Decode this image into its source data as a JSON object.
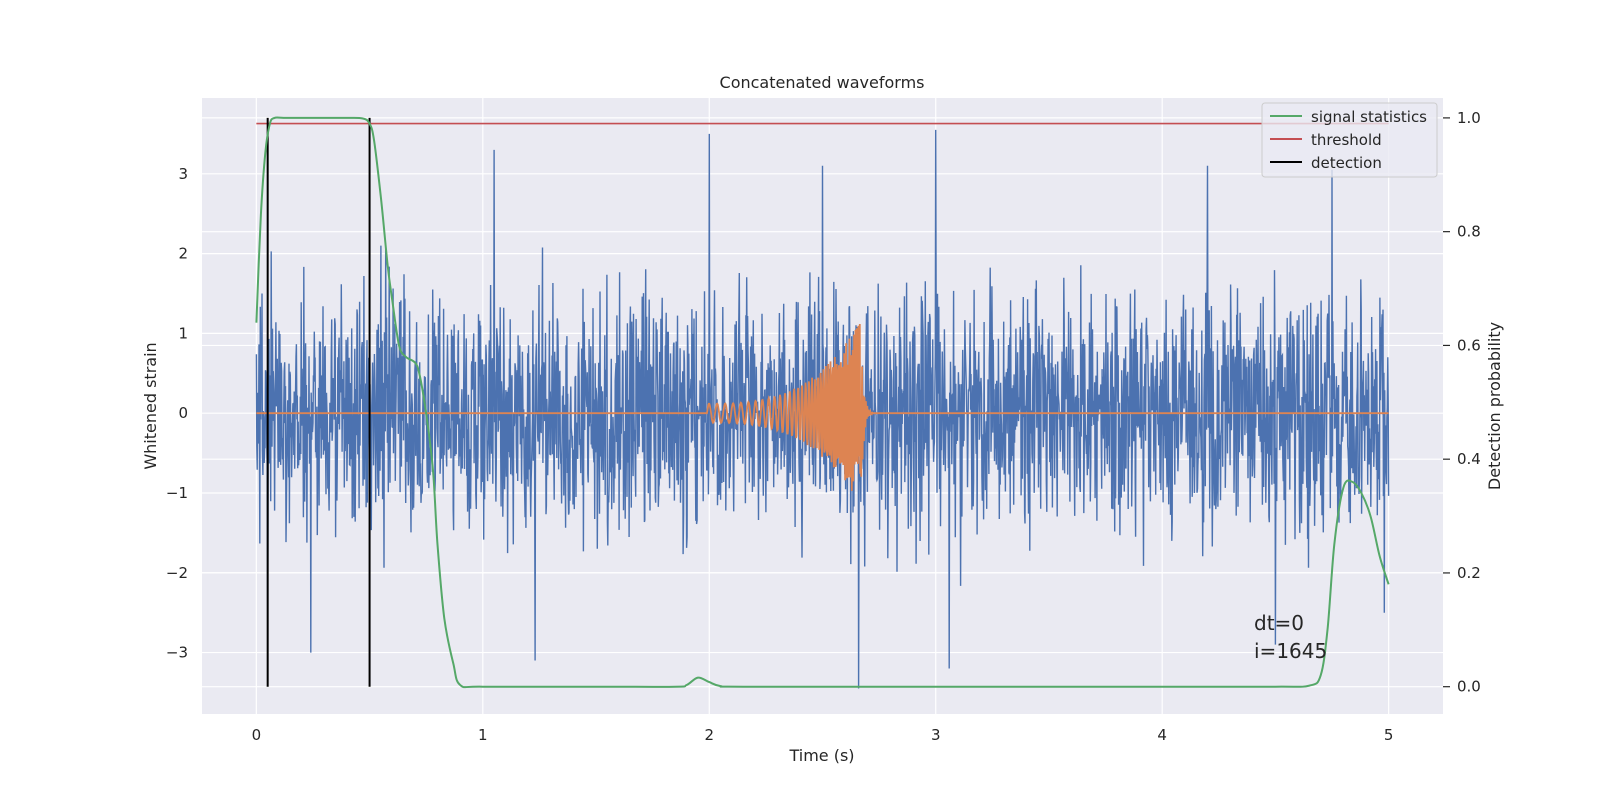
{
  "chart_data": {
    "type": "line",
    "title": "Concatenated waveforms",
    "xlabel": "Time (s)",
    "ylabel": "Whitened strain",
    "ylabel_right": "Detection probability",
    "xlim": [
      -0.24,
      5.24
    ],
    "ylim": [
      -3.77,
      3.95
    ],
    "ylim_right": [
      -0.048,
      1.035
    ],
    "xticks": [
      0,
      1,
      2,
      3,
      4,
      5
    ],
    "yticks": [
      -3,
      -2,
      -1,
      0,
      1,
      2,
      3
    ],
    "yticks_right": [
      0.0,
      0.2,
      0.4,
      0.6,
      0.8,
      1.0
    ],
    "xtick_labels": [
      "0",
      "1",
      "2",
      "3",
      "4",
      "5"
    ],
    "ytick_labels": [
      "−3",
      "−2",
      "−1",
      "0",
      "1",
      "2",
      "3"
    ],
    "ytick_right_labels": [
      "0.0",
      "0.2",
      "0.4",
      "0.6",
      "0.8",
      "1.0"
    ],
    "grid": true,
    "legend_position": "top-right",
    "series": [
      {
        "name": "",
        "axis": "left",
        "color": "#4c72b0",
        "kind": "noise",
        "x_range": [
          0,
          5
        ],
        "typical_envelope": [
          -1.8,
          2.0
        ],
        "peaks": [
          {
            "x": 0.05,
            "y": -2.6
          },
          {
            "x": 0.24,
            "y": -3.0
          },
          {
            "x": 0.55,
            "y": 2.1
          },
          {
            "x": 1.05,
            "y": 3.3
          },
          {
            "x": 1.23,
            "y": -3.1
          },
          {
            "x": 2.0,
            "y": 3.5
          },
          {
            "x": 2.5,
            "y": 3.1
          },
          {
            "x": 2.66,
            "y": -3.45
          },
          {
            "x": 3.0,
            "y": 3.55
          },
          {
            "x": 3.06,
            "y": -3.2
          },
          {
            "x": 4.2,
            "y": 3.1
          },
          {
            "x": 4.75,
            "y": 3.05
          },
          {
            "x": 4.5,
            "y": -2.9
          },
          {
            "x": 4.98,
            "y": -2.5
          }
        ]
      },
      {
        "name": "",
        "axis": "left",
        "color": "#dd8452",
        "kind": "chirp",
        "x_range": [
          0,
          5
        ],
        "chirp_start": 1.99,
        "chirp_end": 2.67,
        "amplitude_start": 0.12,
        "amplitude_peak": 1.15,
        "amplitude_min": -1.1,
        "frequency_start_hz": 28,
        "frequency_end_hz": 170
      },
      {
        "name": "signal statistics",
        "axis": "right",
        "color": "#55a868",
        "x": [
          0.0,
          0.02,
          0.04,
          0.06,
          0.08,
          0.12,
          0.2,
          0.3,
          0.4,
          0.47,
          0.5,
          0.52,
          0.55,
          0.58,
          0.6,
          0.63,
          0.66,
          0.7,
          0.72,
          0.75,
          0.78,
          0.8,
          0.83,
          0.87,
          0.9,
          1.0,
          1.5,
          1.85,
          1.9,
          1.95,
          2.0,
          2.05,
          2.15,
          3.0,
          4.0,
          4.5,
          4.65,
          4.7,
          4.73,
          4.76,
          4.8,
          4.84,
          4.88,
          4.92,
          4.96,
          5.0
        ],
        "y": [
          0.64,
          0.83,
          0.94,
          0.99,
          1.0,
          1.0,
          1.0,
          1.0,
          1.0,
          0.999,
          0.99,
          0.96,
          0.86,
          0.74,
          0.68,
          0.6,
          0.58,
          0.57,
          0.55,
          0.48,
          0.38,
          0.25,
          0.12,
          0.04,
          0.003,
          0.0,
          0.0,
          0.0,
          0.003,
          0.016,
          0.008,
          0.001,
          0.0,
          0.0,
          0.0,
          0.0,
          0.002,
          0.02,
          0.1,
          0.25,
          0.35,
          0.36,
          0.34,
          0.3,
          0.23,
          0.18
        ]
      },
      {
        "name": "threshold",
        "axis": "right",
        "color": "#c44e52",
        "x": [
          0,
          5
        ],
        "y": [
          0.99,
          0.99
        ]
      }
    ],
    "detections": {
      "name": "detection",
      "color": "#000000",
      "x": [
        0.05,
        0.5
      ],
      "y_range": [
        0.0,
        1.0
      ]
    },
    "annotations": [
      {
        "text": "dt=0",
        "x": 4.5,
        "y": -2.9
      },
      {
        "text": "i=1645",
        "x": 4.5,
        "y": -3.25
      }
    ]
  }
}
